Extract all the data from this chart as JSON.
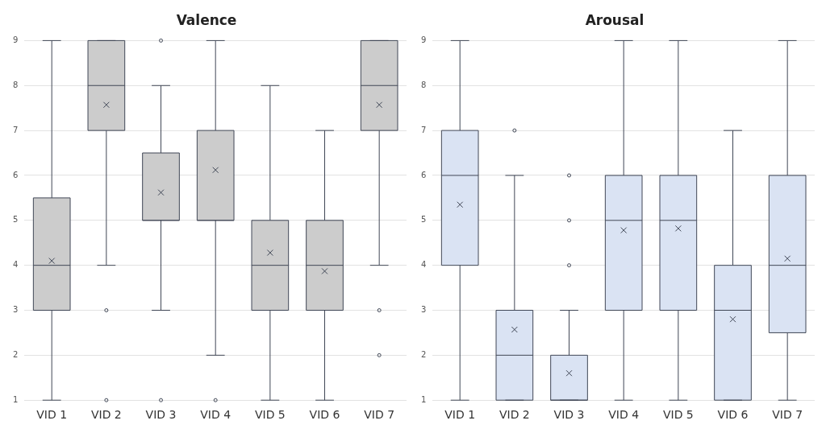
{
  "chart_data": [
    {
      "type": "box",
      "title": "Valence",
      "categories": [
        "VID 1",
        "VID 2",
        "VID 3",
        "VID 4",
        "VID 5",
        "VID 6",
        "VID 7"
      ],
      "ylim": [
        1,
        9
      ],
      "yticks": [
        1,
        2,
        3,
        4,
        5,
        6,
        7,
        8,
        9
      ],
      "grid": "y",
      "series": [
        {
          "color": "#cccccc",
          "boxes": [
            {
              "low": 1,
              "q1": 3,
              "median": 4,
              "q3": 5.5,
              "high": 9,
              "mean": 4.1
            },
            {
              "low": 4,
              "q1": 7,
              "median": 8,
              "q3": 9,
              "high": 9,
              "mean": 7.57,
              "outliers": [
                3,
                1
              ]
            },
            {
              "low": 3,
              "q1": 5,
              "median": 5,
              "q3": 6.5,
              "high": 8,
              "mean": 5.62,
              "outliers": [
                9,
                1
              ]
            },
            {
              "low": 2,
              "q1": 5,
              "median": 5,
              "q3": 7,
              "high": 9,
              "mean": 6.12,
              "outliers": [
                1
              ]
            },
            {
              "low": 1,
              "q1": 3,
              "median": 4,
              "q3": 5,
              "high": 8,
              "mean": 4.28
            },
            {
              "low": 1,
              "q1": 3,
              "median": 4,
              "q3": 5,
              "high": 7,
              "mean": 3.87
            },
            {
              "low": 4,
              "q1": 7,
              "median": 8,
              "q3": 9,
              "high": 9,
              "mean": 7.57,
              "outliers": [
                3,
                2
              ]
            }
          ]
        }
      ]
    },
    {
      "type": "box",
      "title": "Arousal",
      "categories": [
        "VID 1",
        "VID 2",
        "VID 3",
        "VID 4",
        "VID 5",
        "VID 6",
        "VID 7"
      ],
      "ylim": [
        1,
        9
      ],
      "yticks": [
        1,
        2,
        3,
        4,
        5,
        6,
        7,
        8,
        9
      ],
      "grid": "y",
      "series": [
        {
          "color": "#dae3f3",
          "boxes": [
            {
              "low": 1,
              "q1": 4,
              "median": 6,
              "q3": 7,
              "high": 9,
              "mean": 5.35
            },
            {
              "low": 1,
              "q1": 1,
              "median": 2,
              "q3": 3,
              "high": 6,
              "mean": 2.57,
              "outliers": [
                7
              ]
            },
            {
              "low": 1,
              "q1": 1,
              "median": 1,
              "q3": 2,
              "high": 3,
              "mean": 1.6,
              "outliers": [
                4,
                5,
                6
              ]
            },
            {
              "low": 1,
              "q1": 3,
              "median": 5,
              "q3": 6,
              "high": 9,
              "mean": 4.78
            },
            {
              "low": 1,
              "q1": 3,
              "median": 5,
              "q3": 6,
              "high": 9,
              "mean": 4.82
            },
            {
              "low": 1,
              "q1": 1,
              "median": 3,
              "q3": 4,
              "high": 7,
              "mean": 2.8
            },
            {
              "low": 1,
              "q1": 2.5,
              "median": 4,
              "q3": 6,
              "high": 9,
              "mean": 4.15
            }
          ]
        }
      ]
    }
  ]
}
